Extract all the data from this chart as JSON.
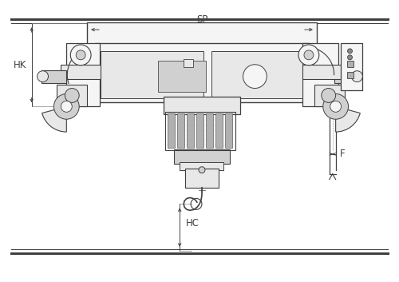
{
  "bg_color": "#ffffff",
  "lc": "#404040",
  "lc2": "#606060",
  "gray1": "#f5f5f5",
  "gray2": "#e8e8e8",
  "gray3": "#d0d0d0",
  "gray4": "#b0b0b0",
  "gray5": "#888888",
  "gray6": "#606060",
  "label_SP": "SP",
  "label_HK": "HK",
  "label_HC": "HC",
  "label_F": "F",
  "figsize": [
    5.0,
    3.53
  ],
  "dpi": 100
}
